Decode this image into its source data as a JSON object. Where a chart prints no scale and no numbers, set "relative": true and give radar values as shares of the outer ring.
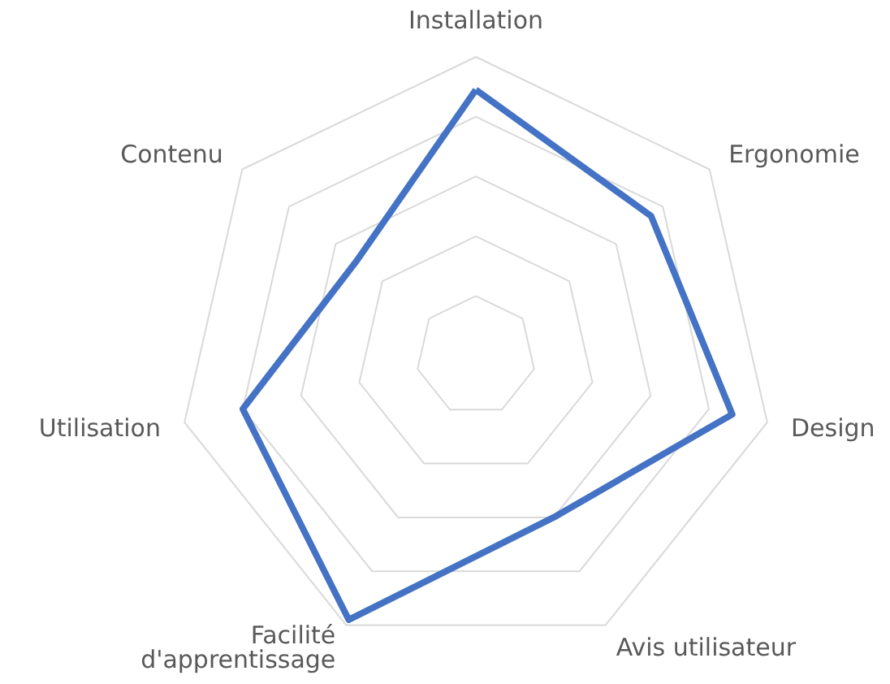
{
  "chart_data": {
    "type": "radar",
    "relative": true,
    "grid": true,
    "marker": "none",
    "line_style": "solid",
    "categories": [
      "Installation",
      "Ergonomie",
      "Design",
      "Avis utilisateur",
      "Facilité d'apprentissage",
      "Utilisation",
      "Contenu"
    ],
    "series": [
      {
        "color": "#4472c4",
        "values": [
          0.89,
          0.75,
          0.88,
          0.6,
          0.98,
          0.8,
          0.51
        ]
      }
    ]
  }
}
